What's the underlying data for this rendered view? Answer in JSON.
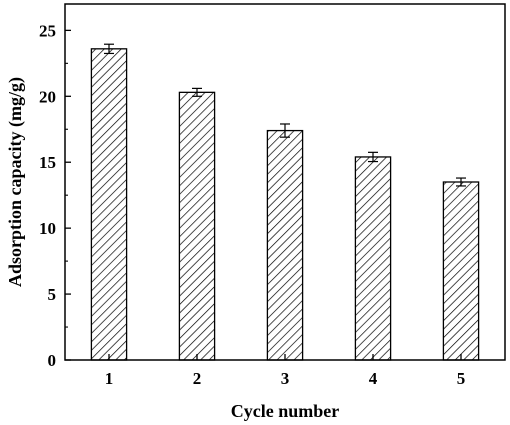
{
  "chart_data": {
    "type": "bar",
    "categories": [
      "1",
      "2",
      "3",
      "4",
      "5"
    ],
    "values": [
      23.6,
      20.3,
      17.4,
      15.4,
      13.5
    ],
    "errors": [
      0.35,
      0.3,
      0.5,
      0.35,
      0.3
    ],
    "xlabel": "Cycle number",
    "ylabel": "Adsorption capacity (mg/g)",
    "ylim": [
      0,
      27
    ],
    "yticks": [
      0,
      5,
      10,
      15,
      20,
      25
    ],
    "bar_fill": "hatched",
    "grid": false,
    "colors": {
      "bar_stroke": "#000000",
      "hatch": "#000000",
      "background": "#ffffff"
    }
  }
}
